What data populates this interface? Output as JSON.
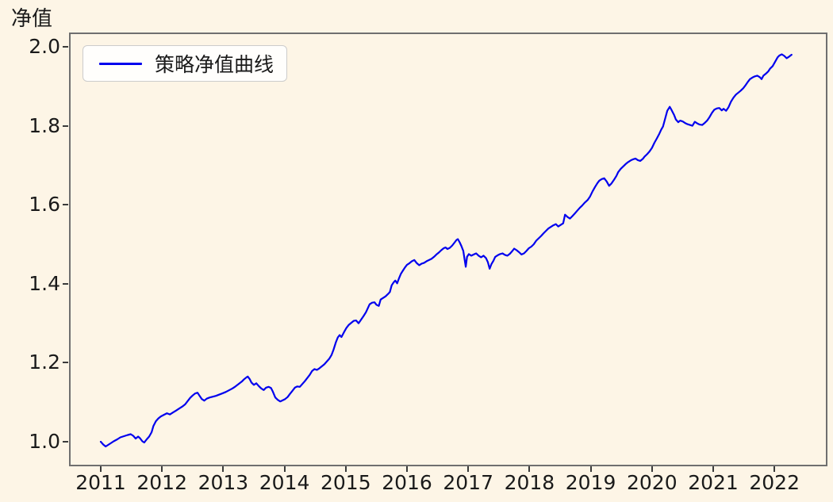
{
  "figure": {
    "background_color": "#FDF5E6",
    "plot_border_color": "#6f6f6f",
    "text_color": "#1a1a1a"
  },
  "chart_data": {
    "type": "line",
    "title": "",
    "xlabel": "",
    "ylabel": "净值",
    "grid": false,
    "legend_position": "upper left",
    "line_color": "#0000EE",
    "xlim": [
      2010.45,
      2022.85
    ],
    "ylim": [
      0.94,
      2.04
    ],
    "x_ticks": [
      2011,
      2012,
      2013,
      2014,
      2015,
      2016,
      2017,
      2018,
      2019,
      2020,
      2021,
      2022
    ],
    "y_ticks": [
      1.0,
      1.2,
      1.4,
      1.6,
      1.8,
      2.0
    ],
    "series": [
      {
        "name": "策略净值曲线",
        "points": [
          [
            2011.0,
            1.0
          ],
          [
            2011.04,
            0.993
          ],
          [
            2011.08,
            0.988
          ],
          [
            2011.12,
            0.992
          ],
          [
            2011.16,
            0.996
          ],
          [
            2011.21,
            1.001
          ],
          [
            2011.27,
            1.006
          ],
          [
            2011.32,
            1.011
          ],
          [
            2011.38,
            1.014
          ],
          [
            2011.44,
            1.017
          ],
          [
            2011.49,
            1.019
          ],
          [
            2011.53,
            1.015
          ],
          [
            2011.57,
            1.008
          ],
          [
            2011.61,
            1.013
          ],
          [
            2011.64,
            1.009
          ],
          [
            2011.68,
            1.001
          ],
          [
            2011.71,
            0.998
          ],
          [
            2011.75,
            1.006
          ],
          [
            2011.79,
            1.013
          ],
          [
            2011.83,
            1.024
          ],
          [
            2011.86,
            1.04
          ],
          [
            2011.9,
            1.052
          ],
          [
            2011.94,
            1.059
          ],
          [
            2011.98,
            1.064
          ],
          [
            2012.03,
            1.068
          ],
          [
            2012.08,
            1.072
          ],
          [
            2012.13,
            1.069
          ],
          [
            2012.18,
            1.074
          ],
          [
            2012.23,
            1.079
          ],
          [
            2012.28,
            1.084
          ],
          [
            2012.33,
            1.089
          ],
          [
            2012.38,
            1.095
          ],
          [
            2012.42,
            1.103
          ],
          [
            2012.46,
            1.111
          ],
          [
            2012.5,
            1.117
          ],
          [
            2012.54,
            1.122
          ],
          [
            2012.58,
            1.124
          ],
          [
            2012.61,
            1.117
          ],
          [
            2012.65,
            1.108
          ],
          [
            2012.69,
            1.104
          ],
          [
            2012.73,
            1.109
          ],
          [
            2012.78,
            1.112
          ],
          [
            2012.83,
            1.114
          ],
          [
            2012.88,
            1.116
          ],
          [
            2012.93,
            1.119
          ],
          [
            2012.98,
            1.122
          ],
          [
            2013.04,
            1.126
          ],
          [
            2013.09,
            1.13
          ],
          [
            2013.15,
            1.135
          ],
          [
            2013.2,
            1.14
          ],
          [
            2013.25,
            1.146
          ],
          [
            2013.3,
            1.152
          ],
          [
            2013.34,
            1.158
          ],
          [
            2013.38,
            1.163
          ],
          [
            2013.4,
            1.165
          ],
          [
            2013.43,
            1.159
          ],
          [
            2013.46,
            1.15
          ],
          [
            2013.5,
            1.144
          ],
          [
            2013.54,
            1.148
          ],
          [
            2013.58,
            1.141
          ],
          [
            2013.62,
            1.135
          ],
          [
            2013.66,
            1.131
          ],
          [
            2013.7,
            1.137
          ],
          [
            2013.74,
            1.139
          ],
          [
            2013.78,
            1.136
          ],
          [
            2013.81,
            1.127
          ],
          [
            2013.85,
            1.112
          ],
          [
            2013.89,
            1.106
          ],
          [
            2013.93,
            1.102
          ],
          [
            2013.97,
            1.105
          ],
          [
            2014.01,
            1.108
          ],
          [
            2014.05,
            1.113
          ],
          [
            2014.09,
            1.121
          ],
          [
            2014.13,
            1.129
          ],
          [
            2014.17,
            1.137
          ],
          [
            2014.21,
            1.14
          ],
          [
            2014.25,
            1.139
          ],
          [
            2014.29,
            1.146
          ],
          [
            2014.33,
            1.153
          ],
          [
            2014.37,
            1.161
          ],
          [
            2014.41,
            1.169
          ],
          [
            2014.45,
            1.179
          ],
          [
            2014.49,
            1.184
          ],
          [
            2014.53,
            1.182
          ],
          [
            2014.57,
            1.186
          ],
          [
            2014.61,
            1.191
          ],
          [
            2014.65,
            1.196
          ],
          [
            2014.69,
            1.203
          ],
          [
            2014.73,
            1.21
          ],
          [
            2014.77,
            1.22
          ],
          [
            2014.8,
            1.233
          ],
          [
            2014.84,
            1.252
          ],
          [
            2014.87,
            1.264
          ],
          [
            2014.9,
            1.27
          ],
          [
            2014.93,
            1.265
          ],
          [
            2014.97,
            1.277
          ],
          [
            2015.01,
            1.288
          ],
          [
            2015.05,
            1.296
          ],
          [
            2015.09,
            1.301
          ],
          [
            2015.13,
            1.306
          ],
          [
            2015.17,
            1.307
          ],
          [
            2015.21,
            1.3
          ],
          [
            2015.25,
            1.309
          ],
          [
            2015.29,
            1.318
          ],
          [
            2015.33,
            1.328
          ],
          [
            2015.36,
            1.338
          ],
          [
            2015.39,
            1.348
          ],
          [
            2015.43,
            1.352
          ],
          [
            2015.47,
            1.353
          ],
          [
            2015.5,
            1.347
          ],
          [
            2015.54,
            1.344
          ],
          [
            2015.57,
            1.36
          ],
          [
            2015.61,
            1.364
          ],
          [
            2015.65,
            1.368
          ],
          [
            2015.69,
            1.374
          ],
          [
            2015.72,
            1.379
          ],
          [
            2015.75,
            1.396
          ],
          [
            2015.78,
            1.403
          ],
          [
            2015.81,
            1.408
          ],
          [
            2015.84,
            1.401
          ],
          [
            2015.87,
            1.414
          ],
          [
            2015.9,
            1.425
          ],
          [
            2015.94,
            1.435
          ],
          [
            2015.97,
            1.442
          ],
          [
            2016.0,
            1.448
          ],
          [
            2016.04,
            1.452
          ],
          [
            2016.08,
            1.457
          ],
          [
            2016.12,
            1.46
          ],
          [
            2016.16,
            1.452
          ],
          [
            2016.2,
            1.447
          ],
          [
            2016.24,
            1.451
          ],
          [
            2016.28,
            1.453
          ],
          [
            2016.32,
            1.457
          ],
          [
            2016.36,
            1.46
          ],
          [
            2016.4,
            1.463
          ],
          [
            2016.44,
            1.468
          ],
          [
            2016.48,
            1.474
          ],
          [
            2016.52,
            1.479
          ],
          [
            2016.56,
            1.485
          ],
          [
            2016.6,
            1.49
          ],
          [
            2016.63,
            1.492
          ],
          [
            2016.66,
            1.488
          ],
          [
            2016.7,
            1.491
          ],
          [
            2016.74,
            1.497
          ],
          [
            2016.78,
            1.505
          ],
          [
            2016.81,
            1.511
          ],
          [
            2016.83,
            1.513
          ],
          [
            2016.86,
            1.505
          ],
          [
            2016.89,
            1.495
          ],
          [
            2016.92,
            1.483
          ],
          [
            2016.94,
            1.462
          ],
          [
            2016.96,
            1.443
          ],
          [
            2016.98,
            1.468
          ],
          [
            2017.01,
            1.475
          ],
          [
            2017.05,
            1.471
          ],
          [
            2017.09,
            1.474
          ],
          [
            2017.13,
            1.477
          ],
          [
            2017.17,
            1.471
          ],
          [
            2017.21,
            1.467
          ],
          [
            2017.25,
            1.471
          ],
          [
            2017.29,
            1.465
          ],
          [
            2017.32,
            1.455
          ],
          [
            2017.35,
            1.438
          ],
          [
            2017.38,
            1.45
          ],
          [
            2017.41,
            1.458
          ],
          [
            2017.44,
            1.468
          ],
          [
            2017.48,
            1.472
          ],
          [
            2017.52,
            1.475
          ],
          [
            2017.56,
            1.477
          ],
          [
            2017.6,
            1.473
          ],
          [
            2017.64,
            1.471
          ],
          [
            2017.68,
            1.476
          ],
          [
            2017.72,
            1.483
          ],
          [
            2017.75,
            1.489
          ],
          [
            2017.79,
            1.485
          ],
          [
            2017.83,
            1.48
          ],
          [
            2017.87,
            1.474
          ],
          [
            2017.91,
            1.477
          ],
          [
            2017.95,
            1.483
          ],
          [
            2017.99,
            1.49
          ],
          [
            2018.03,
            1.494
          ],
          [
            2018.07,
            1.5
          ],
          [
            2018.11,
            1.509
          ],
          [
            2018.15,
            1.515
          ],
          [
            2018.19,
            1.521
          ],
          [
            2018.23,
            1.528
          ],
          [
            2018.27,
            1.534
          ],
          [
            2018.31,
            1.54
          ],
          [
            2018.35,
            1.544
          ],
          [
            2018.39,
            1.548
          ],
          [
            2018.43,
            1.551
          ],
          [
            2018.47,
            1.545
          ],
          [
            2018.51,
            1.549
          ],
          [
            2018.55,
            1.553
          ],
          [
            2018.58,
            1.575
          ],
          [
            2018.62,
            1.569
          ],
          [
            2018.66,
            1.565
          ],
          [
            2018.7,
            1.571
          ],
          [
            2018.74,
            1.578
          ],
          [
            2018.78,
            1.585
          ],
          [
            2018.82,
            1.592
          ],
          [
            2018.86,
            1.598
          ],
          [
            2018.9,
            1.605
          ],
          [
            2018.95,
            1.612
          ],
          [
            2018.99,
            1.621
          ],
          [
            2019.03,
            1.634
          ],
          [
            2019.07,
            1.645
          ],
          [
            2019.11,
            1.655
          ],
          [
            2019.14,
            1.661
          ],
          [
            2019.18,
            1.665
          ],
          [
            2019.22,
            1.667
          ],
          [
            2019.26,
            1.659
          ],
          [
            2019.3,
            1.648
          ],
          [
            2019.34,
            1.654
          ],
          [
            2019.38,
            1.663
          ],
          [
            2019.42,
            1.673
          ],
          [
            2019.45,
            1.683
          ],
          [
            2019.49,
            1.691
          ],
          [
            2019.53,
            1.697
          ],
          [
            2019.57,
            1.703
          ],
          [
            2019.61,
            1.708
          ],
          [
            2019.65,
            1.712
          ],
          [
            2019.69,
            1.715
          ],
          [
            2019.73,
            1.717
          ],
          [
            2019.77,
            1.713
          ],
          [
            2019.81,
            1.711
          ],
          [
            2019.85,
            1.716
          ],
          [
            2019.88,
            1.722
          ],
          [
            2019.92,
            1.728
          ],
          [
            2019.96,
            1.735
          ],
          [
            2020.0,
            1.744
          ],
          [
            2020.04,
            1.757
          ],
          [
            2020.08,
            1.768
          ],
          [
            2020.12,
            1.78
          ],
          [
            2020.15,
            1.79
          ],
          [
            2020.18,
            1.798
          ],
          [
            2020.21,
            1.815
          ],
          [
            2020.25,
            1.838
          ],
          [
            2020.29,
            1.848
          ],
          [
            2020.32,
            1.84
          ],
          [
            2020.36,
            1.828
          ],
          [
            2020.39,
            1.816
          ],
          [
            2020.43,
            1.809
          ],
          [
            2020.46,
            1.813
          ],
          [
            2020.5,
            1.811
          ],
          [
            2020.54,
            1.807
          ],
          [
            2020.58,
            1.804
          ],
          [
            2020.62,
            1.802
          ],
          [
            2020.66,
            1.8
          ],
          [
            2020.7,
            1.81
          ],
          [
            2020.74,
            1.806
          ],
          [
            2020.78,
            1.803
          ],
          [
            2020.82,
            1.802
          ],
          [
            2020.86,
            1.807
          ],
          [
            2020.9,
            1.813
          ],
          [
            2020.94,
            1.822
          ],
          [
            2020.98,
            1.833
          ],
          [
            2021.02,
            1.841
          ],
          [
            2021.06,
            1.844
          ],
          [
            2021.1,
            1.845
          ],
          [
            2021.14,
            1.839
          ],
          [
            2021.17,
            1.843
          ],
          [
            2021.21,
            1.838
          ],
          [
            2021.25,
            1.847
          ],
          [
            2021.29,
            1.861
          ],
          [
            2021.33,
            1.871
          ],
          [
            2021.37,
            1.879
          ],
          [
            2021.41,
            1.884
          ],
          [
            2021.45,
            1.889
          ],
          [
            2021.49,
            1.895
          ],
          [
            2021.53,
            1.903
          ],
          [
            2021.57,
            1.912
          ],
          [
            2021.6,
            1.918
          ],
          [
            2021.64,
            1.922
          ],
          [
            2021.68,
            1.925
          ],
          [
            2021.72,
            1.927
          ],
          [
            2021.76,
            1.923
          ],
          [
            2021.79,
            1.918
          ],
          [
            2021.82,
            1.927
          ],
          [
            2021.86,
            1.932
          ],
          [
            2021.9,
            1.938
          ],
          [
            2021.93,
            1.945
          ],
          [
            2021.97,
            1.951
          ],
          [
            2022.01,
            1.962
          ],
          [
            2022.05,
            1.973
          ],
          [
            2022.08,
            1.978
          ],
          [
            2022.12,
            1.981
          ],
          [
            2022.16,
            1.977
          ],
          [
            2022.2,
            1.971
          ],
          [
            2022.24,
            1.975
          ],
          [
            2022.28,
            1.98
          ]
        ]
      }
    ]
  }
}
